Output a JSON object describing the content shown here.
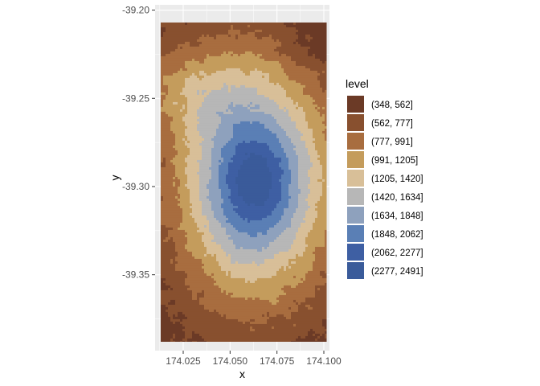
{
  "chart_data": {
    "type": "heatmap",
    "subtype": "filled-contour",
    "title": "",
    "xlabel": "x",
    "ylabel": "y",
    "xlim": [
      174.01,
      174.103
    ],
    "ylim": [
      -39.393,
      -39.197
    ],
    "x_ticks": [
      174.025,
      174.05,
      174.075,
      174.1
    ],
    "x_tick_labels": [
      "174.025",
      "174.050",
      "174.075",
      "174.100"
    ],
    "y_ticks": [
      -39.2,
      -39.25,
      -39.3,
      -39.35
    ],
    "y_tick_labels": [
      "-39.20",
      "-39.25",
      "-39.30",
      "-39.35"
    ],
    "data_extent": {
      "x": [
        174.013,
        174.1015
      ],
      "y": [
        -39.388,
        -39.207
      ]
    },
    "grid": true,
    "panel_background": "#ebebeb",
    "legend": {
      "title": "level",
      "position": "right",
      "entries": [
        {
          "label": "(348, 562]",
          "color": "#6b3a26"
        },
        {
          "label": "(562, 777]",
          "color": "#88502f"
        },
        {
          "label": "(777, 991]",
          "color": "#a86d3f"
        },
        {
          "label": "(991, 1205]",
          "color": "#c49c5c"
        },
        {
          "label": "(1205, 1420]",
          "color": "#d8bf98"
        },
        {
          "label": "(1420, 1634]",
          "color": "#b7b7b7"
        },
        {
          "label": "(1634, 1848]",
          "color": "#8ea1bd"
        },
        {
          "label": "(1848, 2062]",
          "color": "#5a7fb5"
        },
        {
          "label": "(2062, 2277]",
          "color": "#3e5fa3"
        },
        {
          "label": "(2277, 2491]",
          "color": "#3a5b9a"
        }
      ]
    }
  }
}
